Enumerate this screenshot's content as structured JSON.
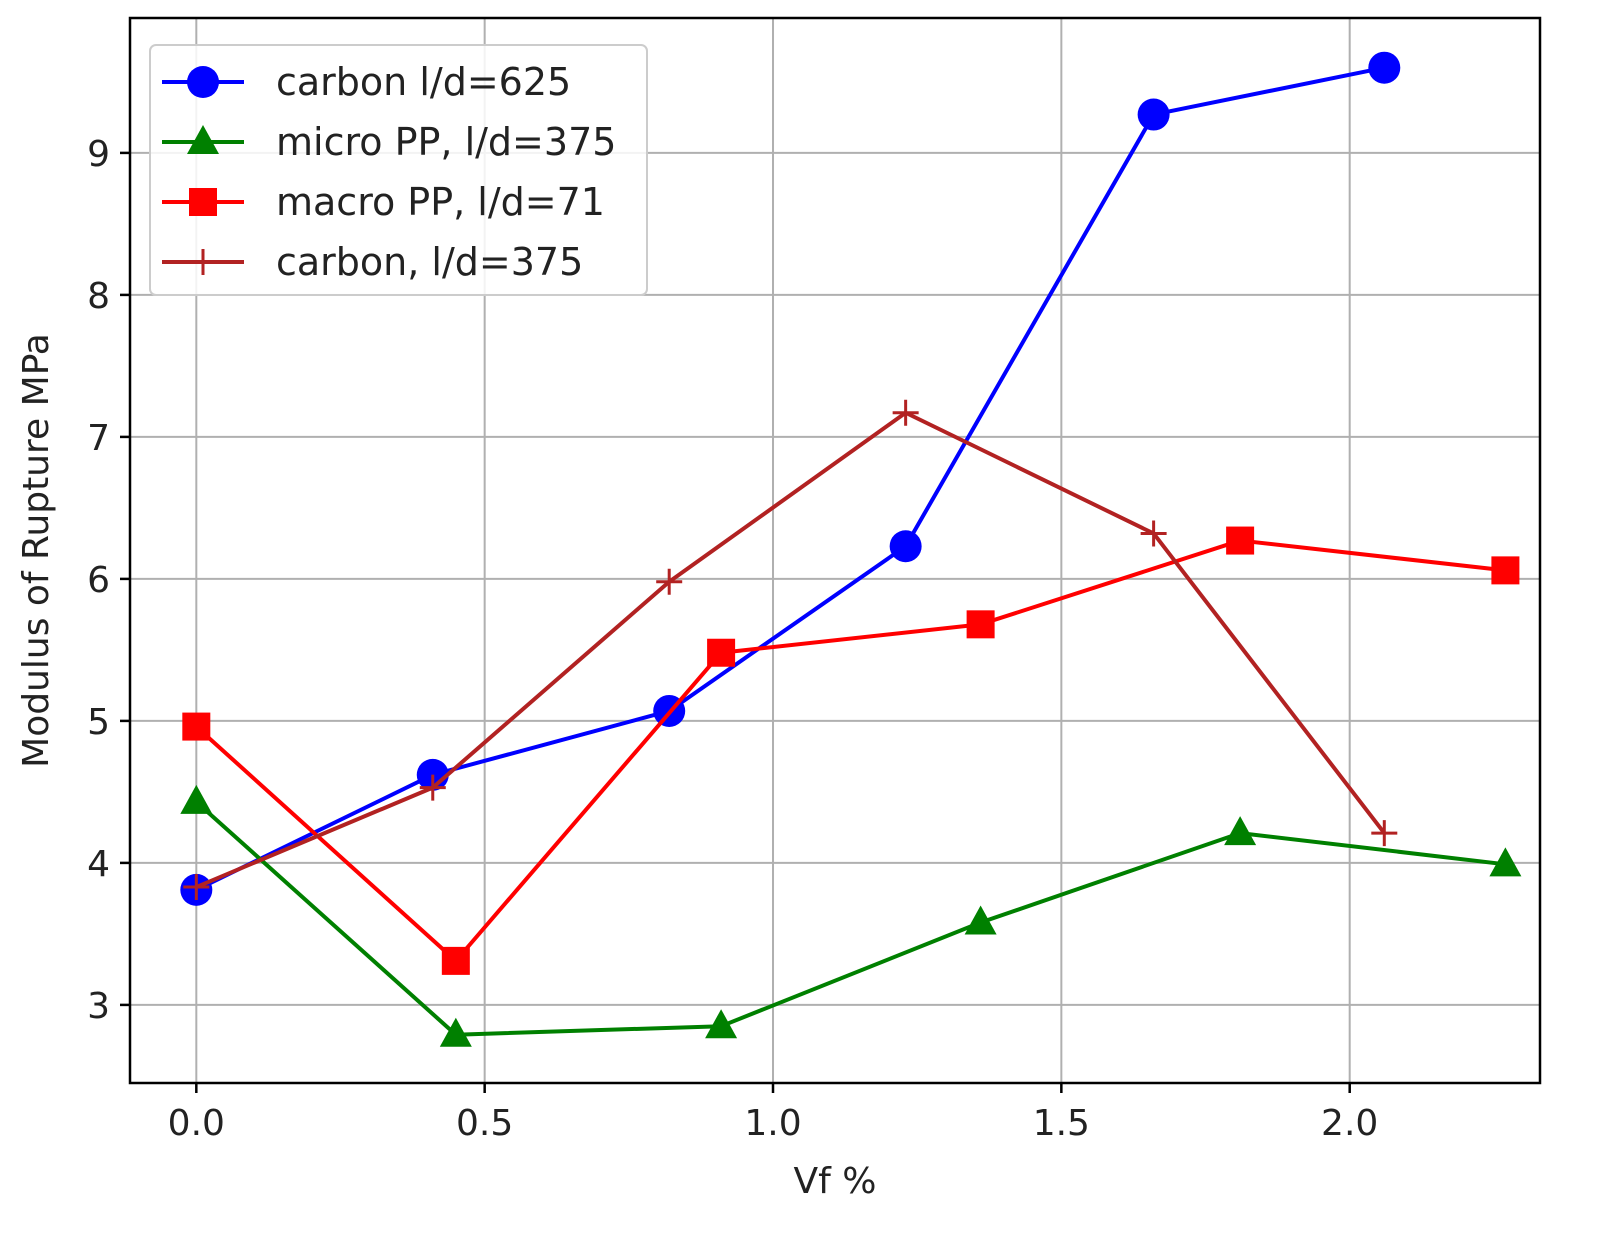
{
  "chart_data": {
    "type": "line",
    "xlabel": "Vf %",
    "ylabel": "Modulus of Rupture MPa",
    "xlim": [
      -0.115,
      2.33
    ],
    "ylim": [
      2.45,
      9.95
    ],
    "xticks": [
      0.0,
      0.5,
      1.0,
      1.5,
      2.0
    ],
    "xtick_labels": [
      "0.0",
      "0.5",
      "1.0",
      "1.5",
      "2.0"
    ],
    "yticks": [
      3,
      4,
      5,
      6,
      7,
      8,
      9
    ],
    "ytick_labels": [
      "3",
      "4",
      "5",
      "6",
      "7",
      "8",
      "9"
    ],
    "grid": true,
    "legend_position": "top-left",
    "series": [
      {
        "name": "carbon l/d=625",
        "color": "#0000ff",
        "marker": "circle",
        "x": [
          0.0,
          0.41,
          0.82,
          1.23,
          1.66,
          2.06
        ],
        "y": [
          3.81,
          4.62,
          5.07,
          6.23,
          9.27,
          9.6
        ]
      },
      {
        "name": "micro PP, l/d=375",
        "color": "#008000",
        "marker": "triangle",
        "x": [
          0.0,
          0.45,
          0.91,
          1.36,
          1.81,
          2.27
        ],
        "y": [
          4.43,
          2.79,
          2.85,
          3.58,
          4.21,
          3.99
        ]
      },
      {
        "name": "macro PP, l/d=71",
        "color": "#ff0000",
        "marker": "square",
        "x": [
          0.0,
          0.45,
          0.91,
          1.36,
          1.81,
          2.27
        ],
        "y": [
          4.96,
          3.31,
          5.48,
          5.68,
          6.27,
          6.06
        ]
      },
      {
        "name": "carbon, l/d=375",
        "color": "#b22222",
        "marker": "plus",
        "x": [
          0.0,
          0.41,
          0.82,
          1.23,
          1.66,
          2.06
        ],
        "y": [
          3.83,
          4.53,
          5.98,
          7.17,
          6.32,
          4.21
        ]
      }
    ]
  }
}
